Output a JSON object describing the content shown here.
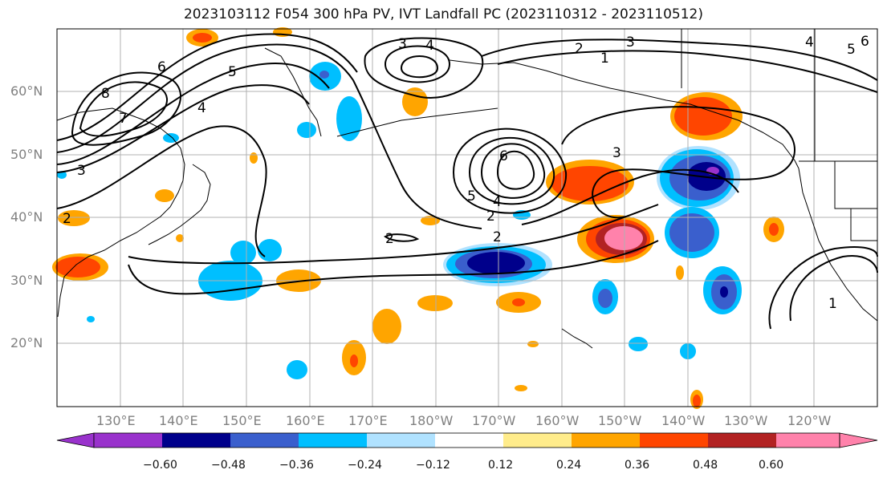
{
  "title": "2023103112 F054 300 hPa PV, IVT Landfall PC (2023110312 - 2023110512)",
  "map": {
    "lat_labels": [
      {
        "text": "60°N",
        "lat": 60
      },
      {
        "text": "50°N",
        "lat": 50
      },
      {
        "text": "40°N",
        "lat": 40
      },
      {
        "text": "30°N",
        "lat": 30
      },
      {
        "text": "20°N",
        "lat": 20
      }
    ],
    "lon_labels": [
      "130°E",
      "140°E",
      "150°E",
      "160°E",
      "170°E",
      "180°W",
      "170°W",
      "160°W",
      "150°W",
      "140°W",
      "130°W",
      "120°W"
    ],
    "lon_range": [
      120,
      250
    ],
    "lat_range": [
      10,
      70
    ],
    "contour_labels": [
      "8",
      "7",
      "6",
      "5",
      "4",
      "3",
      "2",
      "1"
    ]
  },
  "colorbar": {
    "ticks": [
      "−0.60",
      "−0.48",
      "−0.36",
      "−0.24",
      "−0.12",
      "0.12",
      "0.24",
      "0.36",
      "0.48",
      "0.60"
    ],
    "colors": [
      "#9932cc",
      "#00008b",
      "#3a5fcd",
      "#00bfff",
      "#b0e2ff",
      "#ffffff",
      "#ffec8b",
      "#ffa500",
      "#ff4500",
      "#b22222",
      "#ff82ab"
    ]
  }
}
